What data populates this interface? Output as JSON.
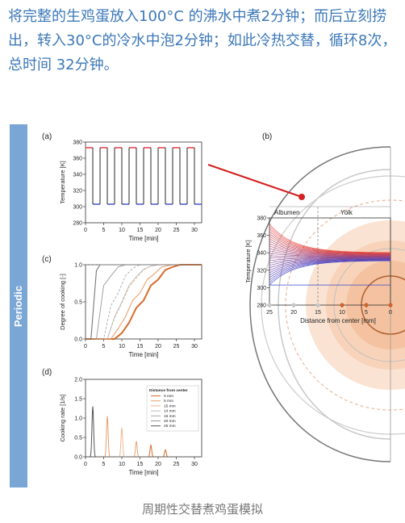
{
  "intro_text": "将完整的生鸡蛋放入100°C 的沸水中煮2分钟；而后立刻捞出，转入30°C的冷水中泡2分钟；如此冷热交替，循环8次，总时间 32分钟。",
  "side_label": "Periodic",
  "caption": "周期性交替煮鸡蛋模拟",
  "colors": {
    "hot": "#e8303a",
    "cold": "#3a48c8",
    "orange": "#e07a3a",
    "side_bar": "#7aa6d6",
    "text_blue": "#3c78b8"
  },
  "chart_data": [
    {
      "panel": "(a)",
      "type": "line",
      "xlabel": "Time [min]",
      "ylabel": "Temperature [K]",
      "xlim": [
        0,
        32
      ],
      "ylim": [
        280,
        380
      ],
      "xticks": [
        "0",
        "5",
        "10",
        "15",
        "20",
        "25",
        "30"
      ],
      "yticks": [
        "280",
        "300",
        "320",
        "340",
        "360",
        "380"
      ],
      "high_temperature": 373,
      "low_temperature": 303,
      "period_min": 4,
      "cycles": 8
    },
    {
      "panel": "(c)",
      "type": "line",
      "xlabel": "Time [min]",
      "ylabel": "Degree of cooking [-]",
      "xlim": [
        0,
        32
      ],
      "ylim": [
        0,
        1.0
      ],
      "xticks": [
        "0",
        "5",
        "10",
        "15",
        "20",
        "25",
        "30"
      ],
      "yticks": [
        "0.0",
        "0.5",
        "1.0"
      ],
      "series": [
        {
          "legend": "0 mm",
          "x": [
            0,
            8,
            10,
            12,
            14,
            16,
            18,
            20,
            22,
            24,
            26,
            32
          ],
          "y": [
            0,
            0,
            0.08,
            0.22,
            0.42,
            0.52,
            0.72,
            0.8,
            0.93,
            0.97,
            1.0,
            1.0
          ]
        },
        {
          "legend": "5 mm",
          "x": [
            0,
            7,
            9,
            11,
            13,
            15,
            17,
            19,
            21,
            24,
            32
          ],
          "y": [
            0,
            0,
            0.14,
            0.3,
            0.52,
            0.62,
            0.8,
            0.88,
            0.97,
            1.0,
            1.0
          ]
        },
        {
          "legend": "15 mm",
          "x": [
            0,
            6,
            8,
            10,
            12,
            14,
            16,
            18,
            20,
            32
          ],
          "y": [
            0,
            0,
            0.28,
            0.48,
            0.7,
            0.82,
            0.93,
            0.98,
            1.0,
            1.0
          ]
        },
        {
          "legend": "14 mm",
          "x": [
            0,
            6,
            8,
            10,
            12,
            14,
            16,
            18,
            20,
            32
          ],
          "y": [
            0,
            0,
            0.3,
            0.5,
            0.72,
            0.84,
            0.94,
            0.98,
            1.0,
            1.0
          ]
        },
        {
          "legend": "16 mm",
          "x": [
            0,
            5,
            7,
            9,
            11,
            13,
            15,
            32
          ],
          "y": [
            0,
            0,
            0.45,
            0.62,
            0.85,
            0.95,
            1.0,
            1.0
          ]
        },
        {
          "legend": "20 mm",
          "x": [
            0,
            3,
            5,
            7,
            9,
            11,
            32
          ],
          "y": [
            0,
            0,
            0.72,
            0.85,
            0.97,
            1.0,
            1.0
          ]
        },
        {
          "legend": "25 mm",
          "x": [
            0,
            1.5,
            3,
            4,
            32
          ],
          "y": [
            0,
            0,
            0.92,
            1.0,
            1.0
          ]
        }
      ]
    },
    {
      "panel": "(d)",
      "type": "line",
      "xlabel": "Time [min]",
      "ylabel": "Cooking rate [1/s]",
      "xlim": [
        0,
        32
      ],
      "ylim": [
        0,
        2.0
      ],
      "xticks": [
        "0",
        "5",
        "10",
        "15",
        "20",
        "25",
        "30"
      ],
      "yticks": [
        "0.0",
        "0.5",
        "1.0",
        "1.5",
        "2.0"
      ],
      "legend_title": "Distance from center",
      "legend": [
        "0 mm",
        "5 mm",
        "15 mm",
        "14 mm",
        "16 mm",
        "20 mm",
        "25 mm"
      ],
      "peaks": [
        {
          "t": 2,
          "h": 1.3,
          "series": "25 mm"
        },
        {
          "t": 6,
          "h": 1.05,
          "series": "5 mm"
        },
        {
          "t": 10,
          "h": 0.75,
          "series": "15 mm"
        },
        {
          "t": 14,
          "h": 0.4,
          "series": "5 mm"
        },
        {
          "t": 18,
          "h": 0.3,
          "series": "0 mm"
        },
        {
          "t": 22,
          "h": 0.18,
          "series": "0 mm"
        }
      ]
    },
    {
      "panel": "(b)",
      "type": "line",
      "xlabel": "Distance from center [mm]",
      "ylabel": "Temperature [K]",
      "xlim": [
        25,
        0
      ],
      "ylim": [
        280,
        380
      ],
      "xticks": [
        "25",
        "20",
        "15",
        "10",
        "5",
        "0"
      ],
      "yticks": [
        "280",
        "300",
        "320",
        "340",
        "360",
        "380"
      ],
      "regions": [
        "Albumen",
        "Yolk"
      ],
      "albumen_yolk_boundary_mm": 15
    }
  ]
}
